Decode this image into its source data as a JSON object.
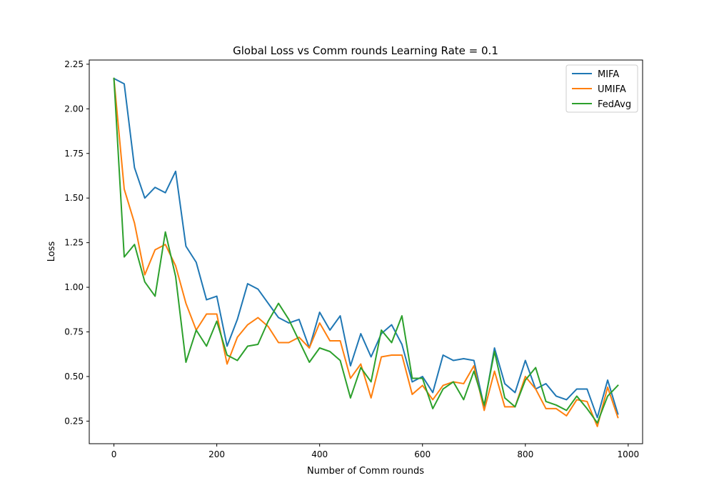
{
  "chart_data": {
    "type": "line",
    "title": "Global Loss vs Comm rounds Learning Rate = 0.1",
    "xlabel": "Number of Comm rounds",
    "ylabel": "Loss",
    "xlim": [
      -48,
      1028
    ],
    "ylim": [
      0.1235,
      2.2735
    ],
    "x_ticks": [
      0,
      200,
      400,
      600,
      800,
      1000
    ],
    "y_ticks": [
      0.25,
      0.5,
      0.75,
      1.0,
      1.25,
      1.5,
      1.75,
      2.0,
      2.25
    ],
    "x_tick_labels": [
      "0",
      "200",
      "400",
      "600",
      "800",
      "1000"
    ],
    "y_tick_labels": [
      "0.25",
      "0.50",
      "0.75",
      "1.00",
      "1.25",
      "1.50",
      "1.75",
      "2.00",
      "2.25"
    ],
    "grid": false,
    "legend_position": "top-right",
    "x": [
      0,
      20,
      40,
      60,
      80,
      100,
      120,
      140,
      160,
      180,
      200,
      220,
      240,
      260,
      280,
      300,
      320,
      340,
      360,
      380,
      400,
      420,
      440,
      460,
      480,
      500,
      520,
      540,
      560,
      580,
      600,
      620,
      640,
      660,
      680,
      700,
      720,
      740,
      760,
      780,
      800,
      820,
      840,
      860,
      880,
      900,
      920,
      940,
      960,
      980
    ],
    "series": [
      {
        "name": "MIFA",
        "color": "#1f77b4",
        "values": [
          2.17,
          2.14,
          1.67,
          1.5,
          1.56,
          1.53,
          1.65,
          1.23,
          1.14,
          0.93,
          0.95,
          0.67,
          0.82,
          1.02,
          0.99,
          0.91,
          0.83,
          0.8,
          0.82,
          0.66,
          0.86,
          0.76,
          0.84,
          0.56,
          0.74,
          0.61,
          0.74,
          0.79,
          0.68,
          0.47,
          0.5,
          0.41,
          0.62,
          0.59,
          0.6,
          0.59,
          0.33,
          0.66,
          0.46,
          0.41,
          0.59,
          0.43,
          0.46,
          0.39,
          0.37,
          0.43,
          0.43,
          0.27,
          0.48,
          0.29
        ]
      },
      {
        "name": "UMIFA",
        "color": "#ff7f0e",
        "values": [
          2.17,
          1.55,
          1.36,
          1.07,
          1.21,
          1.24,
          1.12,
          0.91,
          0.76,
          0.85,
          0.85,
          0.57,
          0.72,
          0.79,
          0.83,
          0.78,
          0.69,
          0.69,
          0.72,
          0.66,
          0.8,
          0.7,
          0.7,
          0.49,
          0.57,
          0.38,
          0.61,
          0.62,
          0.62,
          0.4,
          0.45,
          0.37,
          0.45,
          0.47,
          0.46,
          0.56,
          0.31,
          0.53,
          0.33,
          0.33,
          0.5,
          0.43,
          0.32,
          0.32,
          0.28,
          0.37,
          0.36,
          0.22,
          0.44,
          0.27
        ]
      },
      {
        "name": "FedAvg",
        "color": "#2ca02c",
        "values": [
          2.17,
          1.17,
          1.24,
          1.03,
          0.95,
          1.31,
          1.06,
          0.58,
          0.76,
          0.67,
          0.81,
          0.62,
          0.59,
          0.67,
          0.68,
          0.81,
          0.91,
          0.82,
          0.7,
          0.58,
          0.66,
          0.64,
          0.59,
          0.38,
          0.55,
          0.47,
          0.76,
          0.69,
          0.84,
          0.49,
          0.49,
          0.32,
          0.43,
          0.47,
          0.37,
          0.53,
          0.34,
          0.64,
          0.38,
          0.33,
          0.48,
          0.55,
          0.36,
          0.34,
          0.31,
          0.39,
          0.32,
          0.24,
          0.39,
          0.45
        ]
      }
    ]
  }
}
